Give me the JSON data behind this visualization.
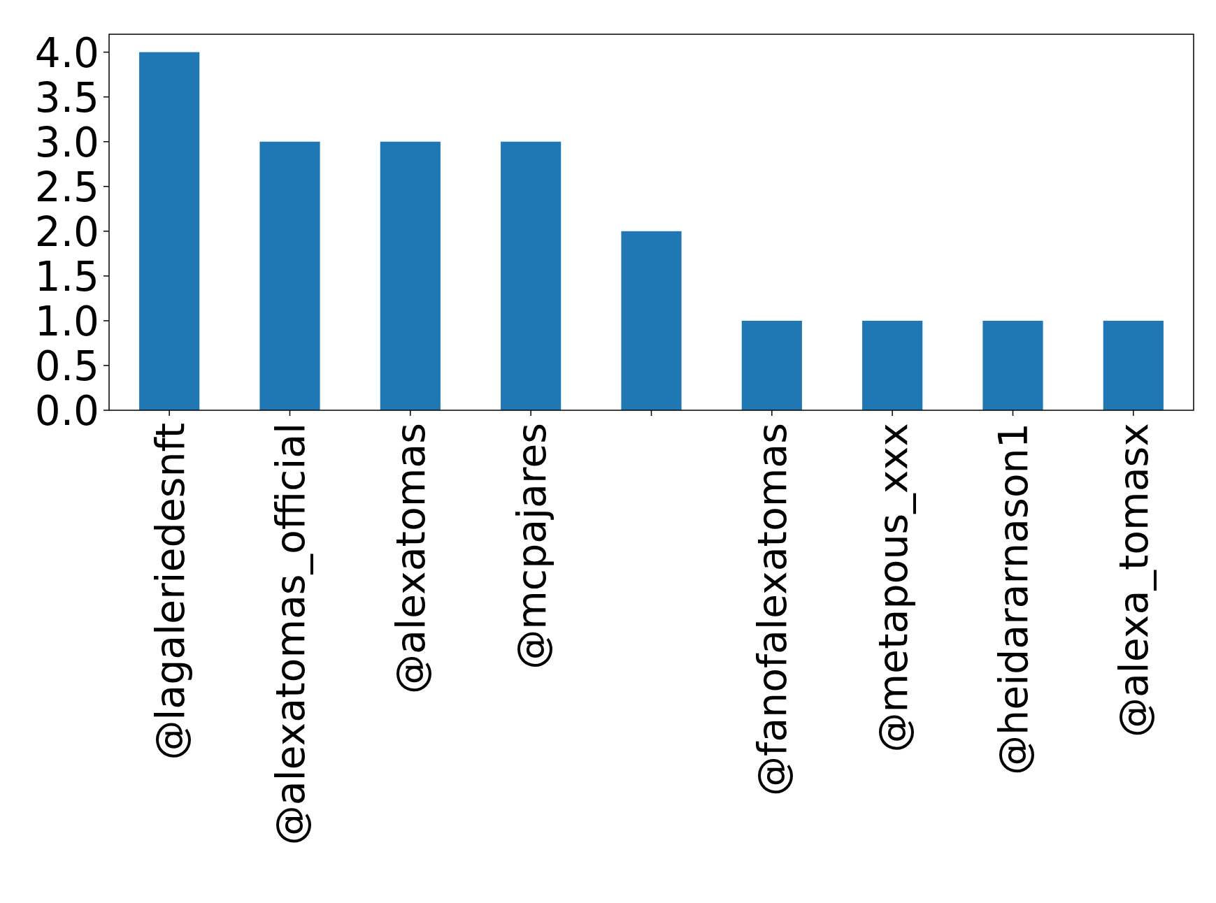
{
  "chart_data": {
    "type": "bar",
    "categories": [
      "@lagaleriedesnft",
      "@alexatomas_official",
      "@alexatomas",
      "@mcpajares",
      null,
      "@fanofalexatomas",
      "@metapous_xxx",
      "@heidararnason1",
      "@alexa_tomasx"
    ],
    "values": [
      4,
      3,
      3,
      3,
      2,
      1,
      1,
      1,
      1
    ],
    "color": "#1f77b4",
    "ylim": [
      0,
      4.2
    ],
    "yticks": [
      {
        "value": 0,
        "label": "0.0"
      },
      {
        "value": 0.5,
        "label": "0.5"
      },
      {
        "value": 1,
        "label": "1.0"
      },
      {
        "value": 1.5,
        "label": "1.5"
      },
      {
        "value": 2,
        "label": "2.0"
      },
      {
        "value": 2.5,
        "label": "2.5"
      },
      {
        "value": 3,
        "label": "3.0"
      },
      {
        "value": 3.5,
        "label": "3.5"
      },
      {
        "value": 4,
        "label": "4.0"
      }
    ]
  }
}
